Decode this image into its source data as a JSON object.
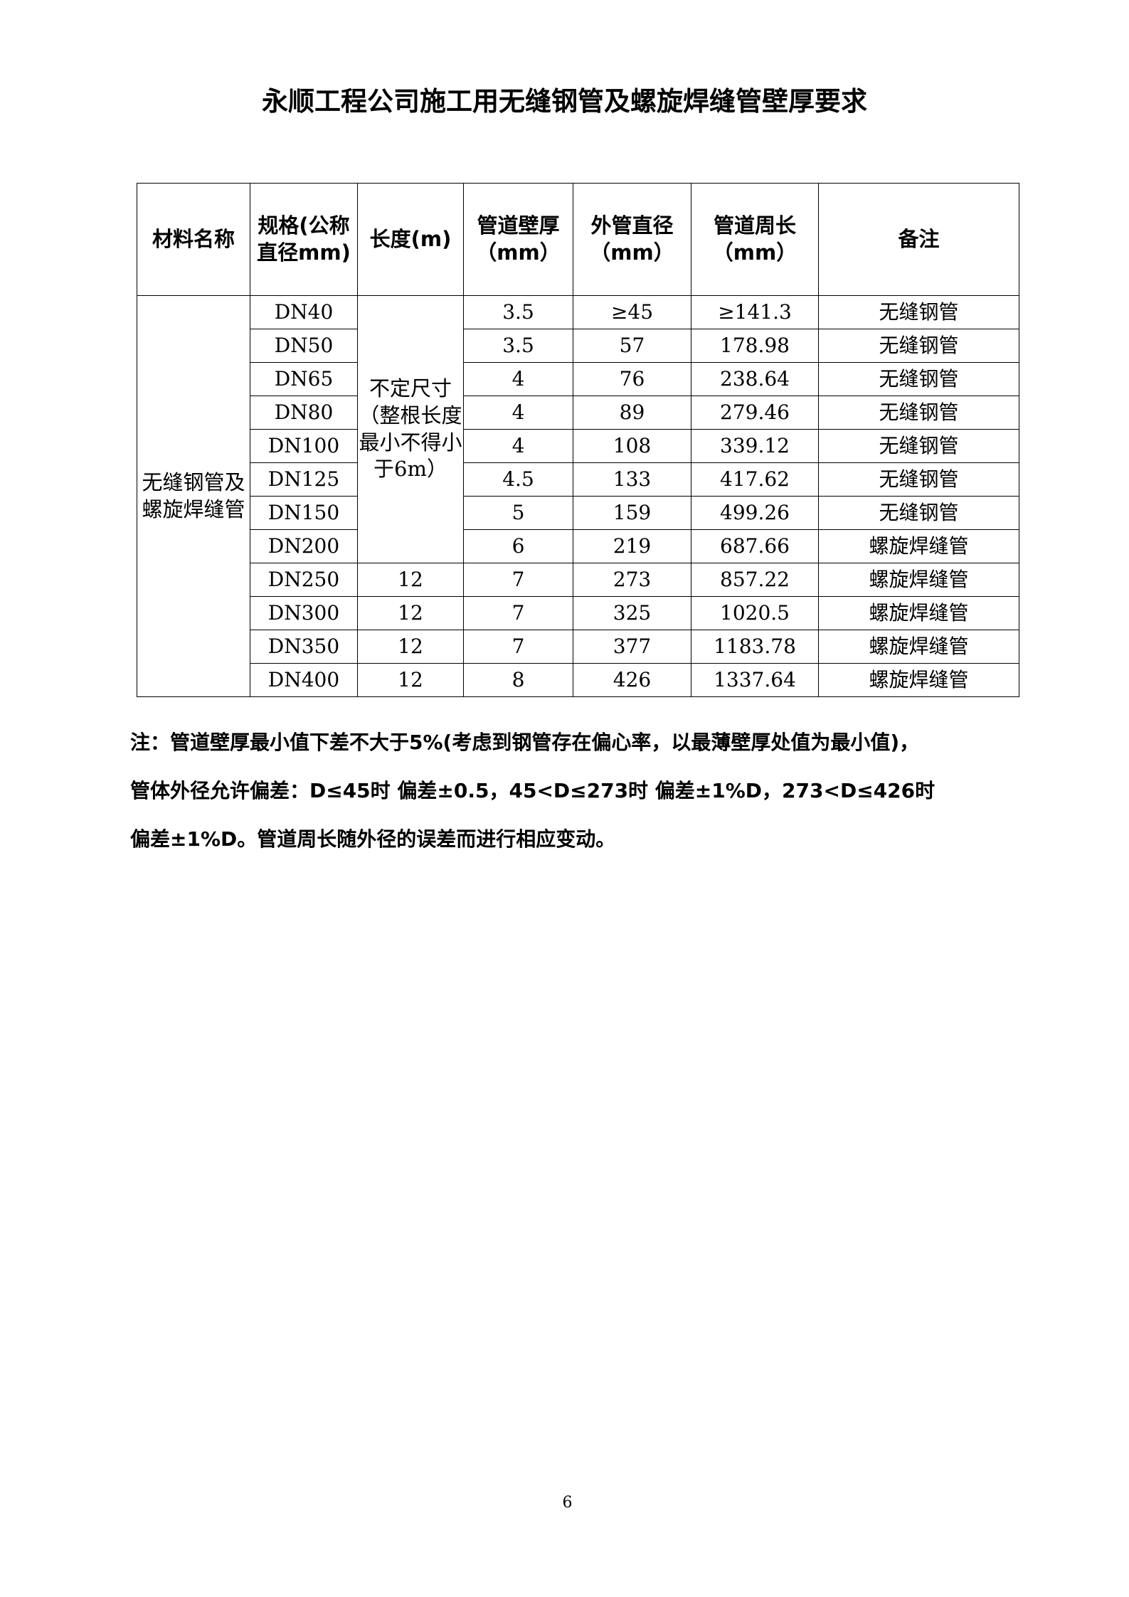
{
  "title": "永顺工程公司施工用无缝钢管及螺旋焊缝管壁厚要求",
  "table": {
    "headers": [
      "材料名称",
      "规格(公称直径mm)",
      "长度(m)",
      "管道壁厚（mm）",
      "外管直径（mm）",
      "管道周长（mm）",
      "备注"
    ],
    "material": "无缝钢管及螺旋焊缝管",
    "length_merged": "不定尺寸（整根长度最小不得小于6m）",
    "rows": [
      {
        "spec": "DN40",
        "length": "",
        "thickness": "3.5",
        "od": "≥45",
        "perimeter": "≥141.3",
        "note": "无缝钢管"
      },
      {
        "spec": "DN50",
        "length": "",
        "thickness": "3.5",
        "od": "57",
        "perimeter": "178.98",
        "note": "无缝钢管"
      },
      {
        "spec": "DN65",
        "length": "",
        "thickness": "4",
        "od": "76",
        "perimeter": "238.64",
        "note": "无缝钢管"
      },
      {
        "spec": "DN80",
        "length": "",
        "thickness": "4",
        "od": "89",
        "perimeter": "279.46",
        "note": "无缝钢管"
      },
      {
        "spec": "DN100",
        "length": "",
        "thickness": "4",
        "od": "108",
        "perimeter": "339.12",
        "note": "无缝钢管"
      },
      {
        "spec": "DN125",
        "length": "",
        "thickness": "4.5",
        "od": "133",
        "perimeter": "417.62",
        "note": "无缝钢管"
      },
      {
        "spec": "DN150",
        "length": "",
        "thickness": "5",
        "od": "159",
        "perimeter": "499.26",
        "note": "无缝钢管"
      },
      {
        "spec": "DN200",
        "length": "",
        "thickness": "6",
        "od": "219",
        "perimeter": "687.66",
        "note": "螺旋焊缝管"
      },
      {
        "spec": "DN250",
        "length": "12",
        "thickness": "7",
        "od": "273",
        "perimeter": "857.22",
        "note": "螺旋焊缝管"
      },
      {
        "spec": "DN300",
        "length": "12",
        "thickness": "7",
        "od": "325",
        "perimeter": "1020.5",
        "note": "螺旋焊缝管"
      },
      {
        "spec": "DN350",
        "length": "12",
        "thickness": "7",
        "od": "377",
        "perimeter": "1183.78",
        "note": "螺旋焊缝管"
      },
      {
        "spec": "DN400",
        "length": "12",
        "thickness": "8",
        "od": "426",
        "perimeter": "1337.64",
        "note": "螺旋焊缝管"
      }
    ]
  },
  "notes": [
    "注：管道壁厚最小值下差不大于5%(考虑到钢管存在偏心率，以最薄壁厚处值为最小值)，",
    "管体外径允许偏差：D≤45时  偏差±0.5，45<D≤273时  偏差±1%D，273<D≤426时",
    "偏差±1%D。管道周长随外径的误差而进行相应变动。"
  ],
  "page_number": "6"
}
